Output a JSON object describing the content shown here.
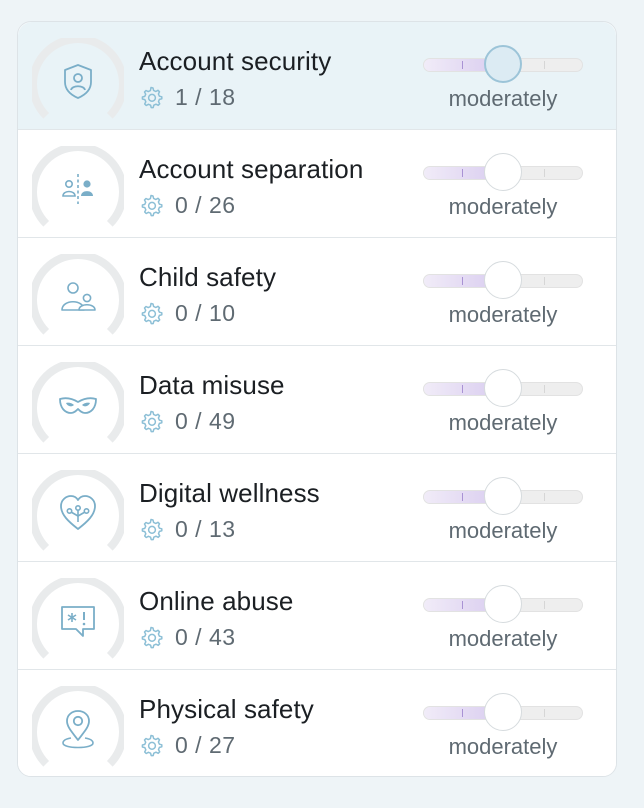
{
  "categories": [
    {
      "title": "Account security",
      "count": "1 / 18",
      "level": "moderately",
      "icon": "shield-user-icon",
      "active": true,
      "slider_fraction": 0.5
    },
    {
      "title": "Account separation",
      "count": "0 / 26",
      "level": "moderately",
      "icon": "separated-users-icon",
      "active": false,
      "slider_fraction": 0.5
    },
    {
      "title": "Child safety",
      "count": "0 / 10",
      "level": "moderately",
      "icon": "parent-child-icon",
      "active": false,
      "slider_fraction": 0.5
    },
    {
      "title": "Data misuse",
      "count": "0 / 49",
      "level": "moderately",
      "icon": "mask-icon",
      "active": false,
      "slider_fraction": 0.5
    },
    {
      "title": "Digital wellness",
      "count": "0 / 13",
      "level": "moderately",
      "icon": "heart-circuit-icon",
      "active": false,
      "slider_fraction": 0.5
    },
    {
      "title": "Online abuse",
      "count": "0 / 43",
      "level": "moderately",
      "icon": "chat-alert-icon",
      "active": false,
      "slider_fraction": 0.5
    },
    {
      "title": "Physical safety",
      "count": "0 / 27",
      "level": "moderately",
      "icon": "location-pin-icon",
      "active": false,
      "slider_fraction": 0.5
    }
  ],
  "colors": {
    "icon_stroke": "#7aaec8",
    "gauge_track": "#e9ebec",
    "slider_fill": "#d8cbef",
    "active_card_bg": "#e9f3f7"
  }
}
